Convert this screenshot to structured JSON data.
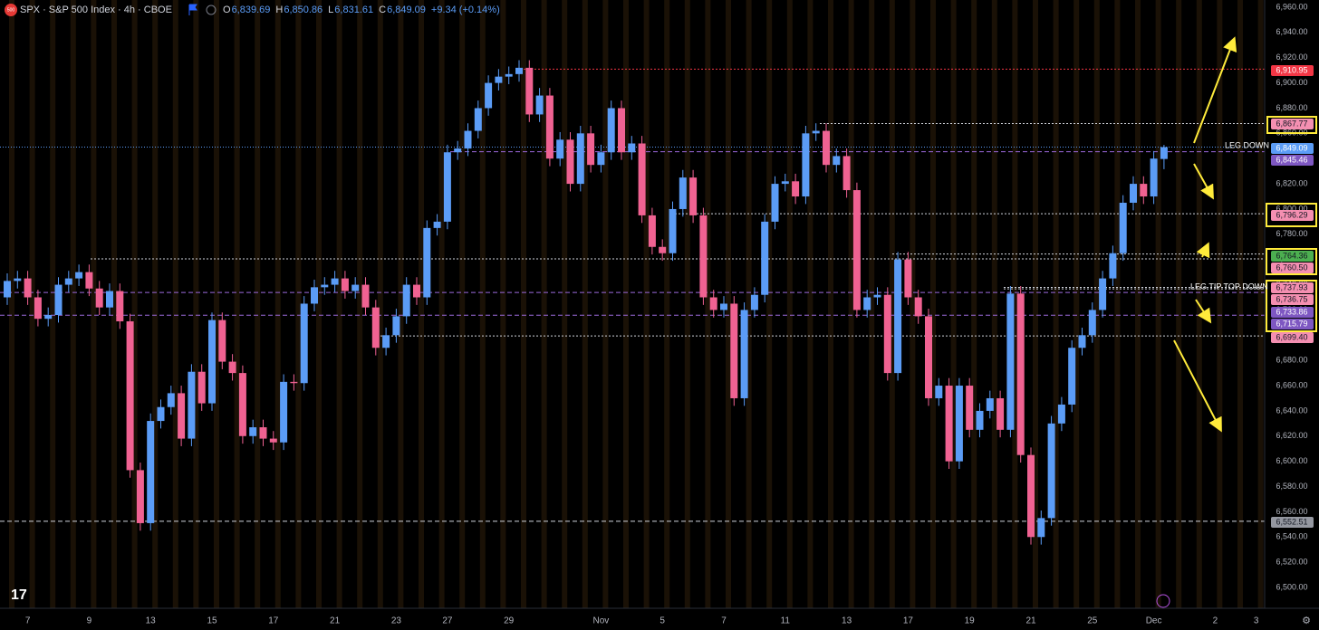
{
  "header": {
    "logo": "500",
    "symbol": "SPX · S&P 500 Index · 4h · CBOE",
    "ohlc": [
      {
        "label": "O",
        "value": "6,839.69"
      },
      {
        "label": "H",
        "value": "6,850.86"
      },
      {
        "label": "L",
        "value": "6,831.61"
      },
      {
        "label": "C",
        "value": "6,849.09"
      }
    ],
    "change": "+9.34 (+0.14%)"
  },
  "chart_data": {
    "type": "candlestick",
    "up_color": "#5b9cf6",
    "down_color": "#f06292",
    "grid": false,
    "categories": [
      null,
      null,
      "7",
      null,
      null,
      null,
      null,
      null,
      "9",
      null,
      null,
      null,
      null,
      null,
      "13",
      null,
      null,
      null,
      null,
      null,
      "15",
      null,
      null,
      null,
      null,
      null,
      "17",
      null,
      null,
      null,
      null,
      null,
      "21",
      null,
      null,
      null,
      null,
      null,
      "23",
      null,
      null,
      null,
      null,
      "27",
      null,
      null,
      null,
      null,
      null,
      "29",
      null,
      null,
      null,
      null,
      null,
      null,
      null,
      null,
      "Nov",
      null,
      null,
      null,
      null,
      null,
      "5",
      null,
      null,
      null,
      null,
      null,
      "7",
      null,
      null,
      null,
      null,
      null,
      "11",
      null,
      null,
      null,
      null,
      null,
      "13",
      null,
      null,
      null,
      null,
      null,
      "17",
      null,
      null,
      null,
      null,
      null,
      "19",
      null,
      null,
      null,
      null,
      null,
      "21",
      null,
      null,
      null,
      null,
      null,
      "25",
      null,
      null,
      null,
      null,
      null,
      "Dec",
      null,
      null,
      null,
      null,
      null,
      "2",
      null,
      null,
      null,
      "3",
      null
    ],
    "open": [
      6730,
      6743,
      6745,
      6730,
      6713,
      6716,
      6740,
      6745,
      6750,
      6737,
      6722,
      6735,
      6711,
      6593,
      6551,
      6632,
      6643,
      6654,
      6618,
      6671,
      6646,
      6712,
      6679,
      6670,
      6620,
      6627,
      6618,
      6615,
      6663,
      6662,
      6725,
      6738,
      6740,
      6745,
      6735,
      6740,
      6722,
      6690,
      6700,
      6715,
      6740,
      6730,
      6785,
      6790,
      6845,
      6848,
      6862,
      6880,
      6900,
      6905,
      6907,
      6912,
      6875,
      6890,
      6840,
      6855,
      6820,
      6860,
      6835,
      6845,
      6880,
      6845,
      6852,
      6795,
      6770,
      6765,
      6800,
      6825,
      6795,
      6730,
      6720,
      6725,
      6650,
      6720,
      6732,
      6790,
      6820,
      6822,
      6810,
      6860,
      6862,
      6835,
      6842,
      6815,
      6720,
      6730,
      6732,
      6670,
      6760,
      6730,
      6715,
      6650,
      6660,
      6600,
      6660,
      6625,
      6640,
      6650,
      6625,
      6733,
      6605,
      6540,
      6555,
      6630,
      6645,
      6690,
      6700,
      6720,
      6745,
      6765,
      6805,
      6820,
      6810,
      6839.69,
      null,
      null,
      null,
      null,
      null,
      null,
      null,
      null,
      null,
      null
    ],
    "high": [
      6749,
      6751,
      6751,
      6736,
      6722,
      6746,
      6751,
      6756,
      6756,
      6743,
      6741,
      6741,
      6717,
      6599,
      6638,
      6649,
      6660,
      6660,
      6677,
      6677,
      6718,
      6718,
      6685,
      6676,
      6633,
      6633,
      6624,
      6669,
      6669,
      6731,
      6744,
      6746,
      6751,
      6751,
      6746,
      6746,
      6728,
      6706,
      6721,
      6746,
      6746,
      6791,
      6796,
      6851,
      6854,
      6868,
      6886,
      6906,
      6911,
      6913,
      6918,
      6918,
      6896,
      6896,
      6861,
      6861,
      6866,
      6866,
      6851,
      6886,
      6886,
      6858,
      6858,
      6801,
      6776,
      6806,
      6831,
      6831,
      6801,
      6736,
      6731,
      6731,
      6726,
      6738,
      6796,
      6826,
      6828,
      6828,
      6866,
      6868,
      6868,
      6848,
      6848,
      6821,
      6736,
      6738,
      6738,
      6766,
      6766,
      6736,
      6721,
      6666,
      6666,
      6666,
      6666,
      6646,
      6656,
      6656,
      6739,
      6739,
      6611,
      6561,
      6636,
      6651,
      6696,
      6706,
      6726,
      6751,
      6771,
      6811,
      6826,
      6826,
      6846,
      6850.86,
      null,
      null,
      null,
      null,
      null,
      null,
      null,
      null,
      null,
      null
    ],
    "low": [
      6724,
      6737,
      6724,
      6707,
      6707,
      6710,
      6734,
      6739,
      6731,
      6716,
      6716,
      6705,
      6587,
      6545,
      6545,
      6626,
      6637,
      6612,
      6612,
      6640,
      6640,
      6673,
      6664,
      6614,
      6614,
      6612,
      6609,
      6609,
      6656,
      6656,
      6719,
      6732,
      6734,
      6729,
      6729,
      6716,
      6684,
      6684,
      6694,
      6709,
      6724,
      6724,
      6779,
      6784,
      6839,
      6842,
      6856,
      6874,
      6894,
      6899,
      6901,
      6869,
      6869,
      6834,
      6834,
      6814,
      6814,
      6829,
      6829,
      6839,
      6839,
      6839,
      6789,
      6764,
      6759,
      6759,
      6794,
      6789,
      6724,
      6714,
      6714,
      6644,
      6644,
      6714,
      6726,
      6784,
      6814,
      6804,
      6804,
      6854,
      6829,
      6829,
      6809,
      6714,
      6714,
      6724,
      6664,
      6664,
      6724,
      6709,
      6644,
      6644,
      6594,
      6594,
      6619,
      6619,
      6634,
      6619,
      6619,
      6599,
      6534,
      6534,
      6549,
      6624,
      6639,
      6684,
      6694,
      6714,
      6739,
      6759,
      6799,
      6804,
      6804,
      6831.61,
      null,
      null,
      null,
      null,
      null,
      null,
      null,
      null,
      null,
      null
    ],
    "close": [
      6743,
      6745,
      6730,
      6713,
      6716,
      6740,
      6745,
      6750,
      6737,
      6722,
      6735,
      6711,
      6593,
      6551,
      6632,
      6643,
      6654,
      6618,
      6671,
      6646,
      6712,
      6679,
      6670,
      6620,
      6627,
      6618,
      6615,
      6663,
      6662,
      6725,
      6738,
      6740,
      6745,
      6735,
      6740,
      6722,
      6690,
      6700,
      6715,
      6740,
      6730,
      6785,
      6790,
      6845,
      6848,
      6862,
      6880,
      6900,
      6905,
      6907,
      6912,
      6875,
      6890,
      6840,
      6855,
      6820,
      6860,
      6835,
      6845,
      6880,
      6845,
      6852,
      6795,
      6770,
      6765,
      6800,
      6825,
      6795,
      6730,
      6720,
      6725,
      6650,
      6720,
      6732,
      6790,
      6820,
      6822,
      6810,
      6860,
      6862,
      6835,
      6842,
      6815,
      6720,
      6730,
      6732,
      6670,
      6760,
      6730,
      6715,
      6650,
      6660,
      6600,
      6660,
      6625,
      6640,
      6650,
      6625,
      6733,
      6605,
      6540,
      6555,
      6630,
      6645,
      6690,
      6700,
      6720,
      6745,
      6765,
      6805,
      6820,
      6810,
      6840,
      6849.09,
      null,
      null,
      null,
      null,
      null,
      null,
      null,
      null,
      null,
      null
    ],
    "ylim": [
      6500,
      6960
    ],
    "yticks": [
      {
        "value": 6500,
        "label": "6,500.00"
      },
      {
        "value": 6520,
        "label": "6,520.00"
      },
      {
        "value": 6540,
        "label": "6,540.00"
      },
      {
        "value": 6560,
        "label": "6,560.00"
      },
      {
        "value": 6580,
        "label": "6,580.00"
      },
      {
        "value": 6600,
        "label": "6,600.00"
      },
      {
        "value": 6620,
        "label": "6,620.00"
      },
      {
        "value": 6640,
        "label": "6,640.00"
      },
      {
        "value": 6660,
        "label": "6,660.00"
      },
      {
        "value": 6680,
        "label": "6,680.00"
      },
      {
        "value": 6700,
        "label": "6,700.00"
      },
      {
        "value": 6720,
        "label": "6,720.00"
      },
      {
        "value": 6740,
        "label": "6,740.00"
      },
      {
        "value": 6760,
        "label": "6,760.00"
      },
      {
        "value": 6780,
        "label": "6,780.00"
      },
      {
        "value": 6800,
        "label": "6,800.00"
      },
      {
        "value": 6820,
        "label": "6,820.00"
      },
      {
        "value": 6840,
        "label": "6,840.00"
      },
      {
        "value": 6860,
        "label": "6,860.00"
      },
      {
        "value": 6880,
        "label": "6,880.00"
      },
      {
        "value": 6900,
        "label": "6,900.00"
      },
      {
        "value": 6920,
        "label": "6,920.00"
      },
      {
        "value": 6940,
        "label": "6,940.00"
      },
      {
        "value": 6960,
        "label": "6,960.00"
      }
    ],
    "levels": [
      {
        "value": 6910.95,
        "label": "6,910.95",
        "color": "#f23645"
      },
      {
        "value": 6867.77,
        "label": "6,867.77",
        "color": "#f48fb1"
      },
      {
        "value": 6849.09,
        "label": "6,849.09",
        "color": "#5b9cf6"
      },
      {
        "value": 6845.46,
        "label": "6,845.46",
        "color": "#7e57c2"
      },
      {
        "value": 6796.29,
        "label": "6,796.29",
        "color": "#f48fb1"
      },
      {
        "value": 6764.36,
        "label": "6,764.36",
        "color": "#4caf50"
      },
      {
        "value": 6760.5,
        "label": "6,760.50",
        "color": "#f48fb1"
      },
      {
        "value": 6737.93,
        "label": "6,737.93",
        "color": "#f48fb1"
      },
      {
        "value": 6736.75,
        "label": "6,736.75",
        "color": "#f48fb1"
      },
      {
        "value": 6733.86,
        "label": "6,733.86",
        "color": "#7e57c2"
      },
      {
        "value": 6715.79,
        "label": "6,715.79",
        "color": "#7e57c2"
      },
      {
        "value": 6699.4,
        "label": "6,699.40",
        "color": "#f48fb1"
      },
      {
        "value": 6552.51,
        "label": "6,552.51",
        "color": "#9598a1"
      }
    ],
    "annotations": [
      "LEG DOWN",
      "LEG TIP TOP DOWN"
    ]
  }
}
